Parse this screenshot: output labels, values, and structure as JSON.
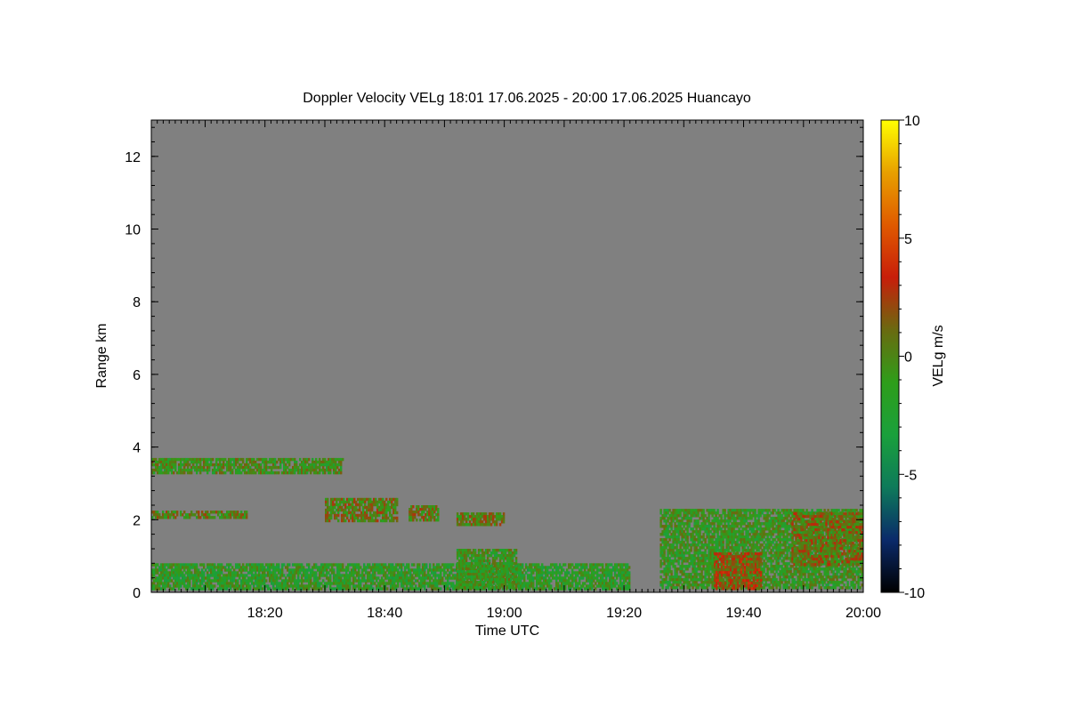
{
  "chart_data": {
    "type": "heatmap",
    "title": "Doppler Velocity VELg   18:01 17.06.2025 - 20:00 17.06.2025 Huancayo",
    "xlabel": "Time UTC",
    "ylabel": "Range km",
    "x_range": [
      "18:01",
      "20:00"
    ],
    "x_tick_labels": [
      "18:20",
      "18:40",
      "19:00",
      "19:20",
      "19:40",
      "20:00"
    ],
    "x_tick_minutes": [
      20,
      40,
      60,
      80,
      100,
      120
    ],
    "xlim_minutes": [
      1,
      120
    ],
    "y_ticks": [
      0,
      2,
      4,
      6,
      8,
      10,
      12
    ],
    "ylim": [
      0,
      13
    ],
    "background_color": "#808080",
    "colorbar": {
      "label": "VELg m/s",
      "range": [
        -10,
        10
      ],
      "ticks": [
        10,
        5,
        0,
        -5,
        -10
      ],
      "ticks_text": [
        "10",
        "5",
        "0",
        "-5",
        "-10"
      ],
      "colors": [
        "#000000",
        "#0a2a6a",
        "#0e7a5a",
        "#1aa03c",
        "#2e9e1a",
        "#6a6a10",
        "#c81e0a",
        "#e05a00",
        "#e8a000",
        "#ffff00"
      ]
    },
    "echo_regions": [
      {
        "t_start": 1,
        "t_end": 33,
        "r_min": 3.3,
        "r_max": 3.7,
        "mean_velocity": -0.5
      },
      {
        "t_start": 1,
        "t_end": 17,
        "r_min": 2.05,
        "r_max": 2.25,
        "mean_velocity": 0.3
      },
      {
        "t_start": 30,
        "t_end": 42,
        "r_min": 2.0,
        "r_max": 2.6,
        "mean_velocity": 0.5
      },
      {
        "t_start": 44,
        "t_end": 49,
        "r_min": 2.0,
        "r_max": 2.4,
        "mean_velocity": 0.5
      },
      {
        "t_start": 52,
        "t_end": 60,
        "r_min": 1.9,
        "r_max": 2.2,
        "mean_velocity": 0.5
      },
      {
        "t_start": 1,
        "t_end": 81,
        "r_min": 0.1,
        "r_max": 0.8,
        "mean_velocity": -1.5
      },
      {
        "t_start": 52,
        "t_end": 62,
        "r_min": 0.1,
        "r_max": 1.2,
        "mean_velocity": -1.0
      },
      {
        "t_start": 86,
        "t_end": 120,
        "r_min": 0.1,
        "r_max": 2.3,
        "mean_velocity": -1.0
      },
      {
        "t_start": 95,
        "t_end": 103,
        "r_min": 0.1,
        "r_max": 1.1,
        "mean_velocity": 2.0
      },
      {
        "t_start": 108,
        "t_end": 120,
        "r_min": 0.8,
        "r_max": 2.2,
        "mean_velocity": 1.0
      }
    ]
  }
}
